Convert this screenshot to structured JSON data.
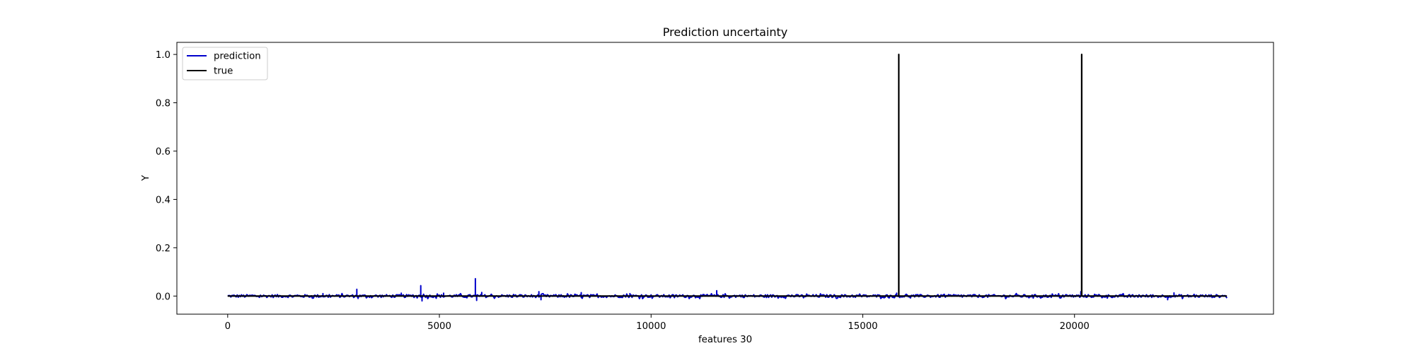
{
  "chart_data": {
    "type": "line",
    "title": "Prediction uncertainty",
    "xlabel": "features 30",
    "ylabel": "Y",
    "xlim": [
      -1200,
      24700
    ],
    "ylim": [
      -0.075,
      1.05
    ],
    "xticks": [
      0,
      5000,
      10000,
      15000,
      20000
    ],
    "xtick_labels": [
      "0",
      "5000",
      "10000",
      "15000",
      "20000"
    ],
    "yticks": [
      0.0,
      0.2,
      0.4,
      0.6,
      0.8,
      1.0
    ],
    "ytick_labels": [
      "0.0",
      "0.2",
      "0.4",
      "0.6",
      "0.8",
      "1.0"
    ],
    "grid": false,
    "legend_position": "top-left",
    "series": [
      {
        "name": "prediction",
        "color": "#0000cc",
        "baseline": 0.0,
        "x_range": [
          0,
          23600
        ],
        "noise_amplitude": 0.006,
        "spikes": [
          {
            "x": 2250,
            "y": 0.01
          },
          {
            "x": 3050,
            "y": 0.028
          },
          {
            "x": 3080,
            "y": -0.01
          },
          {
            "x": 4100,
            "y": 0.012
          },
          {
            "x": 4560,
            "y": 0.043
          },
          {
            "x": 4590,
            "y": -0.02
          },
          {
            "x": 5100,
            "y": 0.012
          },
          {
            "x": 5850,
            "y": 0.072
          },
          {
            "x": 5880,
            "y": -0.018
          },
          {
            "x": 6000,
            "y": 0.015
          },
          {
            "x": 7350,
            "y": 0.018
          },
          {
            "x": 7400,
            "y": -0.015
          },
          {
            "x": 8350,
            "y": 0.014
          },
          {
            "x": 9500,
            "y": 0.01
          },
          {
            "x": 11550,
            "y": 0.022
          },
          {
            "x": 15800,
            "y": 0.012
          },
          {
            "x": 20150,
            "y": 0.018
          },
          {
            "x": 22350,
            "y": 0.013
          },
          {
            "x": 22200,
            "y": -0.015
          }
        ]
      },
      {
        "name": "true",
        "color": "#000000",
        "baseline": 0.0,
        "x_range": [
          0,
          23600
        ],
        "spikes": [
          {
            "x": 15850,
            "y": 1.0
          },
          {
            "x": 20170,
            "y": 1.0
          }
        ]
      }
    ]
  }
}
